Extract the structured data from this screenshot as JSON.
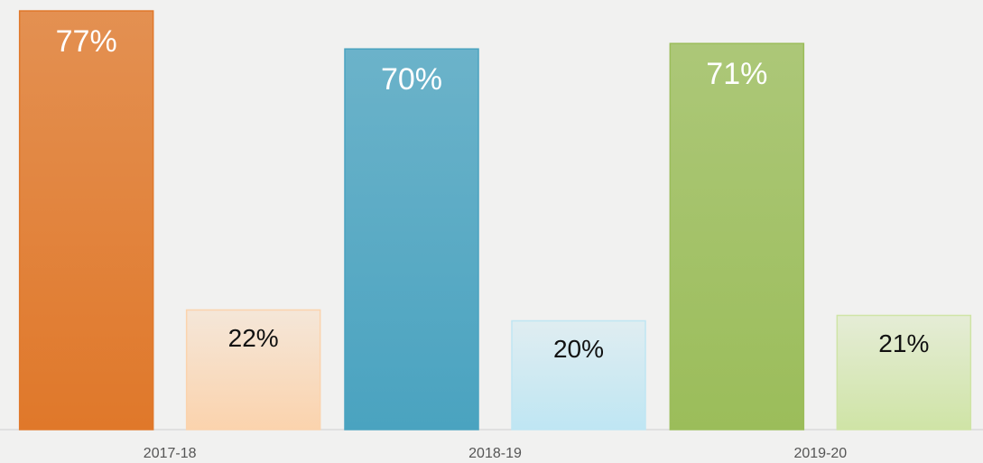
{
  "chart_data": {
    "type": "bar",
    "categories": [
      "2017-18",
      "2018-19",
      "2019-20"
    ],
    "series": [
      {
        "colors": [
          "#e0782a",
          "#4aa3c0",
          "#9bbd5a"
        ],
        "values": [
          77,
          70,
          71
        ],
        "value_labels": [
          "77%",
          "70%",
          "71%"
        ]
      },
      {
        "colors": [
          "#fbd3ad",
          "#bfe6f3",
          "#cfe4a6"
        ],
        "values": [
          22,
          20,
          21
        ],
        "value_labels": [
          "22%",
          "20%",
          "21%"
        ]
      }
    ],
    "ylim": [
      0,
      79
    ]
  }
}
